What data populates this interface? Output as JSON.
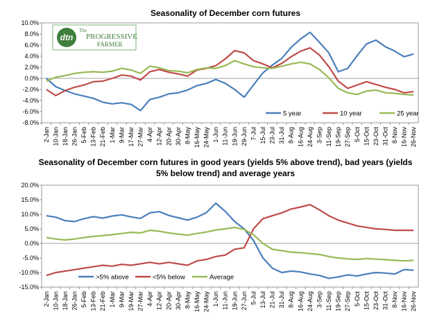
{
  "logo": {
    "badge": "dtn",
    "line1": "The",
    "line2": "PROGRESSIVE",
    "line3": "FARMER"
  },
  "chart_data": [
    {
      "type": "line",
      "title": "Seasonality of December corn futures",
      "ylim": [
        -8,
        10
      ],
      "yticks": [
        "10.0%",
        "8.0%",
        "6.0%",
        "4.0%",
        "2.0%",
        "0.0%",
        "-2.0%",
        "-4.0%",
        "-6.0%",
        "-8.0%"
      ],
      "xticks": [
        "2-Jan",
        "10-Jan",
        "18-Jan",
        "26-Jan",
        "5-Feb",
        "13-Feb",
        "21-Feb",
        "1-Mar",
        "9-Mar",
        "17-Mar",
        "27-Mar",
        "4-Apr",
        "12-Apr",
        "20-Apr",
        "30-Apr",
        "8-May",
        "16-May",
        "24-May",
        "1-Jun",
        "11-Jun",
        "19-Jun",
        "29-Jun",
        "7-Jul",
        "15-Jul",
        "23-Jul",
        "31-Jul",
        "8-Aug",
        "16-Aug",
        "24-Aug",
        "3-Sep",
        "11-Sep",
        "19-Sep",
        "27-Sep",
        "5-Oct",
        "15-Oct",
        "23-Oct",
        "31-Oct",
        "8-Nov",
        "16-Nov",
        "26-Nov"
      ],
      "legend_position": "bottom-right",
      "series": [
        {
          "name": "5 year",
          "color": "#4A7EBB",
          "values": [
            0,
            -1.5,
            -2.2,
            -2.8,
            -3.2,
            -3.6,
            -4.3,
            -4.6,
            -4.4,
            -4.7,
            -5.8,
            -3.8,
            -3.4,
            -2.8,
            -2.6,
            -2.1,
            -1.3,
            -0.9,
            -0.2,
            -0.9,
            -2.0,
            -3.4,
            -1.2,
            1.0,
            2.4,
            3.6,
            5.6,
            7.1,
            8.3,
            6.5,
            4.6,
            1.2,
            1.8,
            4.1,
            6.2,
            6.9,
            5.7,
            4.9,
            3.9,
            4.4
          ]
        },
        {
          "name": "10 year",
          "color": "#BE4B48",
          "values": [
            -2,
            -3.1,
            -2.2,
            -1.6,
            -1.2,
            -0.6,
            -0.5,
            0.0,
            0.6,
            0.4,
            -0.3,
            1.2,
            1.6,
            1.1,
            0.8,
            0.4,
            1.5,
            1.8,
            2.3,
            3.5,
            5.0,
            4.6,
            3.2,
            2.6,
            1.9,
            2.7,
            3.9,
            4.9,
            5.5,
            4.2,
            2.1,
            -0.5,
            -1.8,
            -1.2,
            -0.6,
            -1.1,
            -1.6,
            -2.0,
            -2.6,
            -2.4
          ]
        },
        {
          "name": "25 year",
          "color": "#98B954",
          "values": [
            -0.5,
            0.2,
            0.5,
            0.9,
            1.1,
            1.2,
            1.1,
            1.3,
            1.8,
            1.5,
            0.9,
            2.2,
            1.9,
            1.4,
            1.3,
            1.0,
            1.6,
            1.9,
            1.8,
            2.3,
            3.2,
            2.6,
            2.1,
            1.9,
            1.8,
            2.2,
            2.6,
            2.9,
            2.6,
            1.6,
            0.1,
            -1.8,
            -2.6,
            -2.9,
            -2.3,
            -2.1,
            -2.6,
            -2.7,
            -2.9,
            -3.0
          ]
        }
      ]
    },
    {
      "type": "line",
      "title": "Seasonality of December corn futures in good years (yields 5% above trend), bad years (yields 5% below trend) and average years",
      "title_lines": [
        "Seasonality of December corn futures in good years (yields 5% above trend), bad years (yields",
        "5% below trend) and average years"
      ],
      "ylim": [
        -15,
        20
      ],
      "yticks": [
        "20.0%",
        "15.0%",
        "10.0%",
        "5.0%",
        "0.0%",
        "-5.0%",
        "-10.0%",
        "-15.0%"
      ],
      "xticks": [
        "2-Jan",
        "10-Jan",
        "18-Jan",
        "26-Jan",
        "5-Feb",
        "13-Feb",
        "21-Feb",
        "1-Mar",
        "9-Mar",
        "19-Mar",
        "27-Mar",
        "4-Apr",
        "12-Apr",
        "20-Apr",
        "30-Apr",
        "8-May",
        "16-May",
        "24-May",
        "1-Jun",
        "11-Jun",
        "19-Jun",
        "27-Jun",
        "5-Jul",
        "13-Jul",
        "21-Jul",
        "31-Jul",
        "8-Aug",
        "16-Aug",
        "24-Aug",
        "3-Sep",
        "11-Sep",
        "19-Sep",
        "27-Sep",
        "5-Oct",
        "15-Oct",
        "23-Oct",
        "31-Oct",
        "8-Nov",
        "16-Nov",
        "26-Nov"
      ],
      "legend_position": "bottom-left",
      "series": [
        {
          "name": ">5% above",
          "color": "#4A7EBB",
          "values": [
            9.5,
            9.0,
            7.8,
            7.5,
            8.5,
            9.2,
            8.7,
            9.4,
            9.8,
            9.1,
            8.6,
            10.5,
            10.9,
            9.6,
            8.8,
            8.0,
            9.0,
            10.6,
            13.8,
            11.0,
            7.5,
            5.0,
            1.0,
            -5.0,
            -8.5,
            -10.0,
            -9.5,
            -9.8,
            -10.5,
            -11.0,
            -12.0,
            -11.5,
            -10.8,
            -11.2,
            -10.5,
            -10.0,
            -10.2,
            -10.5,
            -9.0,
            -9.2
          ]
        },
        {
          "name": "<5% below",
          "color": "#BE4B48",
          "values": [
            -11,
            -10,
            -9.5,
            -9.0,
            -8.5,
            -8.0,
            -7.5,
            -7.8,
            -7.2,
            -7.5,
            -7.0,
            -6.5,
            -7.0,
            -6.5,
            -7.0,
            -7.5,
            -6.0,
            -5.5,
            -4.5,
            -4.0,
            -2.0,
            -1.5,
            5.0,
            8.5,
            9.5,
            10.5,
            11.8,
            12.5,
            13.3,
            11.5,
            9.5,
            8.0,
            7.0,
            6.0,
            5.5,
            5.0,
            4.8,
            4.5,
            4.5,
            4.5
          ]
        },
        {
          "name": "Average",
          "color": "#98B954",
          "values": [
            2.0,
            1.5,
            1.2,
            1.5,
            2.0,
            2.4,
            2.7,
            3.0,
            3.4,
            3.8,
            3.6,
            4.5,
            4.2,
            3.6,
            3.2,
            2.8,
            3.4,
            3.9,
            4.6,
            5.0,
            5.5,
            4.8,
            3.0,
            0.0,
            -2.0,
            -2.5,
            -3.0,
            -3.2,
            -3.5,
            -3.8,
            -4.5,
            -5.0,
            -5.3,
            -5.5,
            -5.2,
            -5.4,
            -5.6,
            -5.8,
            -6.0,
            -5.8
          ]
        }
      ]
    }
  ]
}
